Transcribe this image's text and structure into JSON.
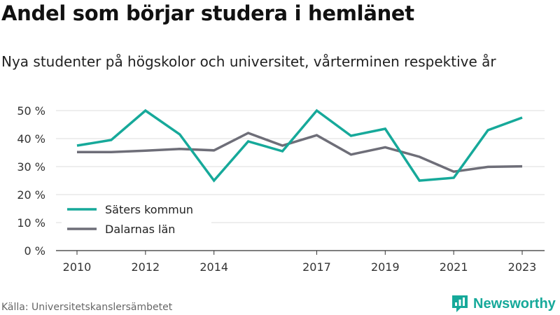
{
  "title": "Andel som börjar studera i hemlänet",
  "subtitle": "Nya studenter på högskolor och universitet, vårterminen respektive år",
  "source": "Källa: Universitetskanslersämbetet",
  "brand": {
    "name": "Newsworthy",
    "icon": "newsworthy-logo-icon",
    "color": "#16a99a"
  },
  "chart_data": {
    "type": "line",
    "x": [
      2010,
      2011,
      2012,
      2013,
      2014,
      2015,
      2016,
      2017,
      2018,
      2019,
      2020,
      2021,
      2022,
      2023
    ],
    "xticks": [
      2010,
      2012,
      2014,
      2017,
      2019,
      2021,
      2023
    ],
    "yticks": [
      "0 %",
      "10 %",
      "20 %",
      "30 %",
      "40 %",
      "50 %"
    ],
    "ylim": [
      0,
      50
    ],
    "grid": true,
    "legend_position": "bottom-left",
    "series": [
      {
        "name": "Säters kommun",
        "color": "#16a99a",
        "values": [
          37.5,
          39.5,
          50,
          41.5,
          25,
          39,
          35.5,
          50,
          41,
          43.5,
          25,
          26,
          43,
          47.5
        ]
      },
      {
        "name": "Dalarnas län",
        "color": "#6e6e78",
        "values": [
          35.2,
          35.2,
          35.7,
          36.3,
          35.8,
          42,
          37.5,
          41.2,
          34.3,
          36.9,
          33.5,
          28.2,
          29.9,
          30.1
        ]
      }
    ]
  }
}
